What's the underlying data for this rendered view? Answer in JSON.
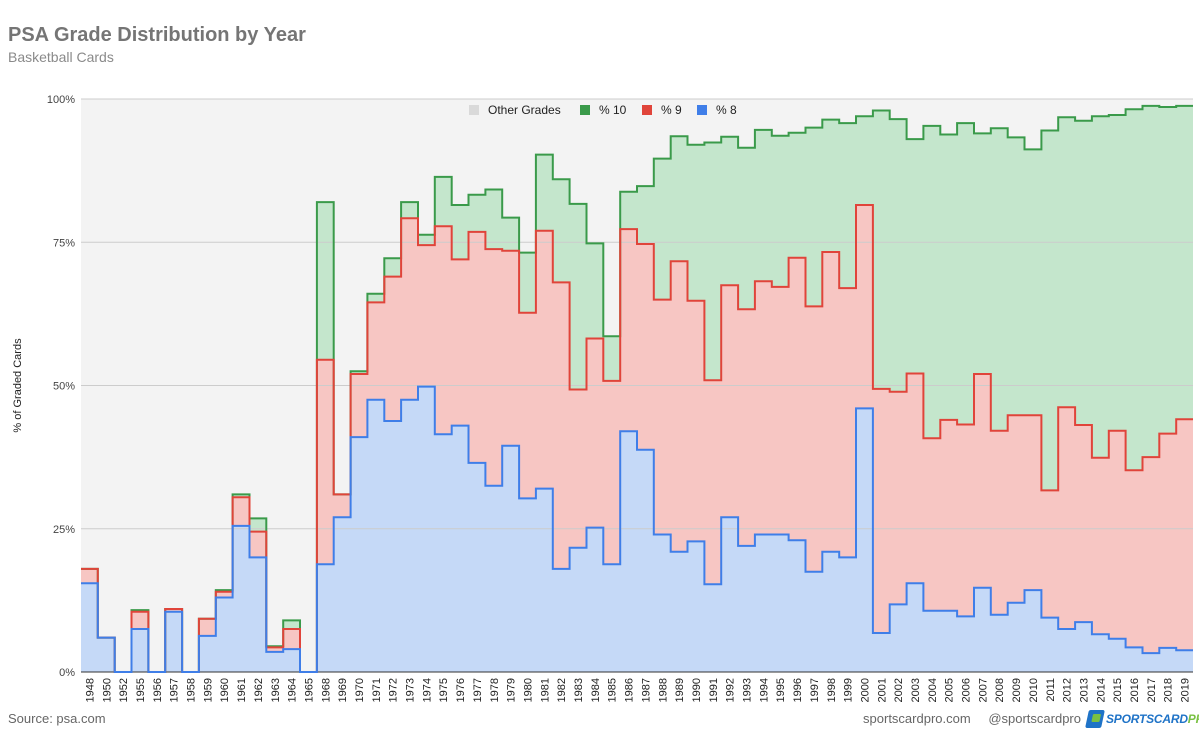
{
  "header": {
    "title": "PSA Grade Distribution by Year",
    "subtitle": "Basketball Cards"
  },
  "footer": {
    "source": "Source: psa.com",
    "site": "sportscardpro.com",
    "handle": "@sportscardpro",
    "brand_main": "SPORTSCARD",
    "brand_accent": "PRO"
  },
  "colors": {
    "pct10_line": "#3a9a4a",
    "pct10_fill": "#c4e6cc",
    "pct9_line": "#e0443a",
    "pct9_fill": "#f7c6c3",
    "pct8_line": "#3f7ee8",
    "pct8_fill": "#c5d9f7",
    "other_fill": "#f3f3f3",
    "other_swatch": "#d9d9d9"
  },
  "chart_data": {
    "type": "area",
    "stacked": true,
    "step": true,
    "title": "PSA Grade Distribution by Year",
    "subtitle": "Basketball Cards",
    "xlabel": "",
    "ylabel": "% of Graded Cards",
    "ylim": [
      0,
      100
    ],
    "yticks": [
      "0%",
      "25%",
      "50%",
      "75%",
      "100%"
    ],
    "legend_position": "top",
    "legend": [
      "Other Grades",
      "% 10",
      "% 9",
      "% 8"
    ],
    "categories": [
      "1948",
      "1950",
      "1952",
      "1955",
      "1956",
      "1957",
      "1958",
      "1959",
      "1960",
      "1961",
      "1962",
      "1963",
      "1964",
      "1965",
      "1968",
      "1969",
      "1970",
      "1971",
      "1972",
      "1973",
      "1974",
      "1975",
      "1976",
      "1977",
      "1978",
      "1979",
      "1980",
      "1981",
      "1982",
      "1983",
      "1984",
      "1985",
      "1986",
      "1987",
      "1988",
      "1989",
      "1990",
      "1991",
      "1992",
      "1993",
      "1994",
      "1995",
      "1996",
      "1997",
      "1998",
      "1999",
      "2000",
      "2001",
      "2002",
      "2003",
      "2004",
      "2005",
      "2006",
      "2007",
      "2008",
      "2009",
      "2010",
      "2011",
      "2012",
      "2013",
      "2014",
      "2015",
      "2016",
      "2017",
      "2018",
      "2019"
    ],
    "series": [
      {
        "name": "% 8",
        "cumulative": [
          15.5,
          6,
          0,
          7.5,
          0,
          10.5,
          0,
          6.3,
          13,
          25.5,
          20,
          3.5,
          4,
          0,
          18.8,
          27,
          41,
          47.5,
          43.8,
          47.5,
          49.8,
          41.5,
          43,
          36.5,
          32.5,
          39.5,
          30.3,
          32,
          18,
          21.7,
          25.2,
          18.8,
          42,
          38.8,
          24,
          21,
          22.8,
          15.3,
          27,
          22,
          24,
          24,
          23,
          17.5,
          21,
          20,
          46,
          6.8,
          11.8,
          15.5,
          10.7,
          10.7,
          9.7,
          14.7,
          10,
          12.1,
          14.3,
          9.5,
          7.5,
          8.7,
          6.6,
          5.8,
          4.3,
          3.3,
          4.2,
          3.8
        ]
      },
      {
        "name": "% 9",
        "cumulative": [
          18,
          6,
          0,
          10.5,
          0,
          11,
          0,
          9.3,
          14,
          30.5,
          24.5,
          4.3,
          7.5,
          0,
          54.5,
          31,
          52,
          64.5,
          69,
          79.2,
          74.5,
          77.8,
          72,
          76.8,
          73.8,
          73.5,
          62.7,
          77,
          68,
          49.3,
          58.2,
          50.8,
          77.3,
          74.7,
          65,
          71.7,
          64.8,
          50.9,
          67.5,
          63.3,
          68.2,
          67.2,
          72.3,
          63.8,
          73.3,
          67,
          81.5,
          49.4,
          48.9,
          52.1,
          40.8,
          44,
          43.2,
          52,
          42.1,
          44.8,
          44.8,
          31.7,
          46.2,
          43.1,
          37.4,
          42.1,
          35.2,
          37.5,
          41.6,
          44.1
        ]
      },
      {
        "name": "% 10",
        "cumulative": [
          18,
          6,
          0,
          10.8,
          0,
          11,
          0,
          9.3,
          14.3,
          31,
          26.8,
          4.5,
          9,
          0,
          82,
          31,
          52.5,
          66,
          72.2,
          82,
          76.3,
          86.4,
          81.5,
          83.3,
          84.2,
          79.3,
          73.2,
          90.3,
          86,
          81.7,
          74.8,
          58.6,
          83.8,
          84.8,
          89.6,
          93.5,
          92,
          92.4,
          93.4,
          91.5,
          94.6,
          93.6,
          94.1,
          95,
          96.4,
          95.8,
          97,
          98,
          96.5,
          93,
          95.3,
          93.8,
          95.8,
          94,
          94.9,
          93.3,
          91.2,
          94.5,
          96.8,
          96.2,
          97,
          97.2,
          98.2,
          98.8,
          98.6,
          98.8
        ]
      }
    ]
  }
}
